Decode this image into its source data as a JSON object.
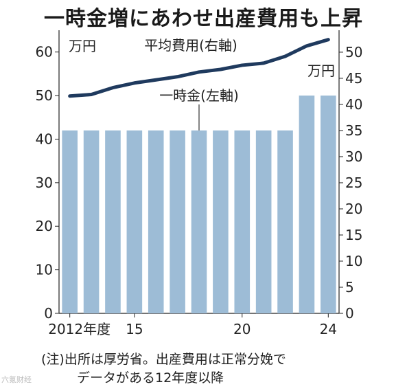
{
  "title": "一時金増にあわせ出産費用も上昇",
  "note": {
    "line1": "(注)出所は厚労省。出産費用は正常分娩で",
    "line2": "データがある12年度以降"
  },
  "watermark": "六氪财经",
  "colors": {
    "bar": "#9dbcd6",
    "line": "#1f3a5e",
    "axis": "#222222",
    "grid": "#cccccc"
  },
  "chart_data": {
    "type": "bar",
    "categories": [
      "2012",
      "2013",
      "2014",
      "2015",
      "2016",
      "2017",
      "2018",
      "2019",
      "2020",
      "2021",
      "2022",
      "2023",
      "2024"
    ],
    "x_tick_labels": [
      {
        "index": 0,
        "label": "2012年度"
      },
      {
        "index": 3,
        "label": "15"
      },
      {
        "index": 8,
        "label": "20"
      },
      {
        "index": 12,
        "label": "24"
      }
    ],
    "y_left": {
      "unit": "万円",
      "ticks": [
        0,
        10,
        20,
        30,
        40,
        50,
        60
      ],
      "range": [
        0,
        65
      ]
    },
    "y_right": {
      "unit": "万円",
      "ticks": [
        0,
        5,
        10,
        15,
        20,
        25,
        30,
        35,
        40,
        45,
        50
      ],
      "range": [
        0,
        54.2
      ]
    },
    "series": [
      {
        "name": "一時金(左軸)",
        "type": "bar",
        "axis": "left",
        "values": [
          42,
          42,
          42,
          42,
          42,
          42,
          42,
          42,
          42,
          42,
          42,
          50,
          50
        ]
      },
      {
        "name": "平均費用(右軸)",
        "type": "line",
        "axis": "right",
        "values": [
          41.6,
          41.9,
          43.2,
          44.1,
          44.7,
          45.3,
          46.2,
          46.7,
          47.5,
          47.9,
          49.2,
          51.2,
          52.4
        ]
      }
    ],
    "grid": false
  }
}
